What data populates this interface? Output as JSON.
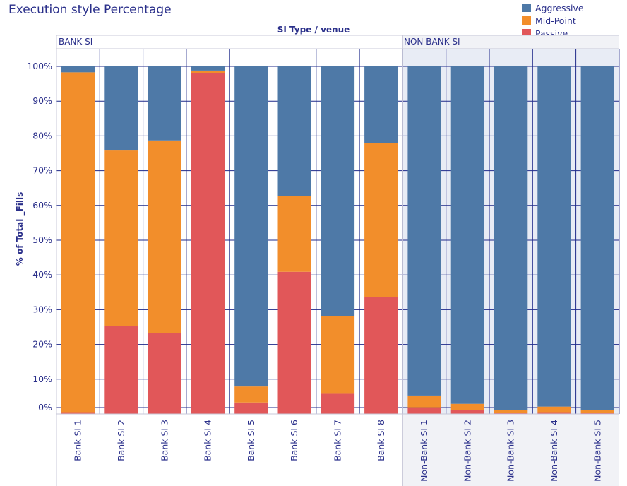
{
  "chart_data": {
    "type": "bar",
    "stacked": true,
    "title": "Execution style Percentage",
    "header": "SI Type  /  venue",
    "ylabel": "% of Total _Fills",
    "ylim": [
      0,
      100
    ],
    "yticks": [
      "100%",
      "90%",
      "80%",
      "70%",
      "60%",
      "50%",
      "40%",
      "30%",
      "20%",
      "10%",
      "0%"
    ],
    "groups": [
      {
        "label": "BANK SI",
        "categories": [
          "Bank SI 1",
          "Bank SI 2",
          "Bank SI 3",
          "Bank SI 4",
          "Bank SI 5",
          "Bank SI 6",
          "Bank SI 7",
          "Bank SI 8"
        ]
      },
      {
        "label": "NON-BANK SI",
        "categories": [
          "Non-Bank SI 1",
          "Non-Bank SI 2",
          "Non-Bank SI 3",
          "Non-Bank SI 4",
          "Non-Bank SI 5"
        ]
      }
    ],
    "categories": [
      "Bank SI 1",
      "Bank SI 2",
      "Bank SI 3",
      "Bank SI 4",
      "Bank SI 5",
      "Bank SI 6",
      "Bank SI 7",
      "Bank SI 8",
      "Non-Bank SI 1",
      "Non-Bank SI 2",
      "Non-Bank SI 3",
      "Non-Bank SI 4",
      "Non-Bank SI 5"
    ],
    "series": [
      {
        "name": "Passive",
        "color": "#e15759",
        "values": [
          0.5,
          25.3,
          23.3,
          98.0,
          3.3,
          40.9,
          5.8,
          33.6,
          1.9,
          1.2,
          0.3,
          0.5,
          0.3
        ]
      },
      {
        "name": "Mid-Point",
        "color": "#f28e2b",
        "values": [
          97.8,
          50.5,
          55.4,
          0.8,
          4.6,
          21.8,
          22.4,
          44.4,
          3.4,
          1.7,
          0.8,
          1.6,
          0.9
        ]
      },
      {
        "name": "Aggressive",
        "color": "#4e79a7",
        "values": [
          1.7,
          24.2,
          21.3,
          1.2,
          92.1,
          37.3,
          71.8,
          22.0,
          94.7,
          97.1,
          98.9,
          97.9,
          98.8
        ]
      }
    ],
    "legend": {
      "position": "top-right",
      "order": [
        "Aggressive",
        "Mid-Point",
        "Passive"
      ]
    }
  }
}
